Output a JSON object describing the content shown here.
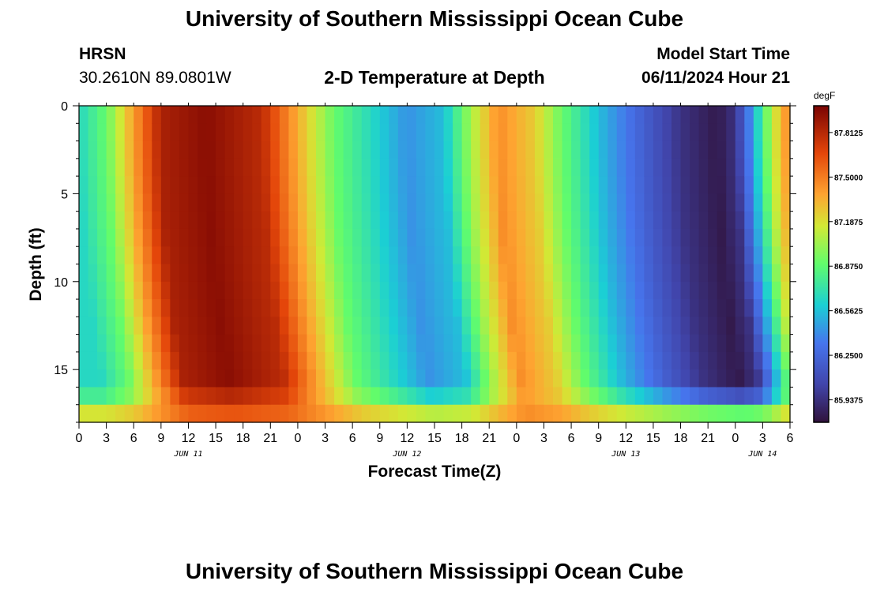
{
  "header": {
    "title": "University of Southern Mississippi Ocean Cube",
    "station": "HRSN",
    "coords": "30.2610N  89.0801W",
    "plot_title": "2-D Temperature at Depth",
    "model_label": "Model Start Time",
    "model_time": "06/11/2024 Hour 21"
  },
  "footer": {
    "title": "University of Southern Mississippi Ocean Cube"
  },
  "chart_data": {
    "type": "heatmap",
    "title": "2-D Temperature at Depth",
    "xlabel": "Forecast Time(Z)",
    "ylabel": "Depth (ft)",
    "x_hours_range": [
      0,
      78
    ],
    "y_depth_range": [
      0,
      18
    ],
    "x_tick_labels": [
      "0",
      "3",
      "6",
      "9",
      "12",
      "15",
      "18",
      "21",
      "0",
      "3",
      "6",
      "9",
      "12",
      "15",
      "18",
      "21",
      "0",
      "3",
      "6",
      "9",
      "12",
      "15",
      "18",
      "21",
      "0",
      "3",
      "6"
    ],
    "y_tick_labels": [
      "0",
      "5",
      "10",
      "15"
    ],
    "date_labels": [
      {
        "label": "JUN 11",
        "hour": 12
      },
      {
        "label": "JUN 12",
        "hour": 36
      },
      {
        "label": "JUN 13",
        "hour": 60
      },
      {
        "label": "JUN 14",
        "hour": 75
      }
    ],
    "colorbar": {
      "unit": "degF",
      "min": 85.78,
      "max": 88.0,
      "tick_labels": [
        "87.8125",
        "87.5000",
        "87.1875",
        "86.8750",
        "86.5625",
        "86.2500",
        "85.9375"
      ]
    },
    "temperature_profile_top": [
      {
        "hour": 0,
        "degF": 86.65
      },
      {
        "hour": 3,
        "degF": 86.9
      },
      {
        "hour": 6,
        "degF": 87.4
      },
      {
        "hour": 9,
        "degF": 87.85
      },
      {
        "hour": 14,
        "degF": 87.95
      },
      {
        "hour": 20,
        "degF": 87.8
      },
      {
        "hour": 24,
        "degF": 87.35
      },
      {
        "hour": 28,
        "degF": 86.9
      },
      {
        "hour": 33,
        "degF": 86.6
      },
      {
        "hour": 36,
        "degF": 86.42
      },
      {
        "hour": 40,
        "degF": 86.55
      },
      {
        "hour": 43,
        "degF": 87.05
      },
      {
        "hour": 46,
        "degF": 87.45
      },
      {
        "hour": 50,
        "degF": 87.25
      },
      {
        "hour": 53,
        "degF": 86.9
      },
      {
        "hour": 57,
        "degF": 86.55
      },
      {
        "hour": 62,
        "degF": 86.2
      },
      {
        "hour": 66,
        "degF": 85.95
      },
      {
        "hour": 70,
        "degF": 85.82
      },
      {
        "hour": 72,
        "degF": 85.95
      },
      {
        "hour": 74,
        "degF": 86.5
      },
      {
        "hour": 76,
        "degF": 87.1
      },
      {
        "hour": 78,
        "degF": 87.5
      }
    ]
  }
}
